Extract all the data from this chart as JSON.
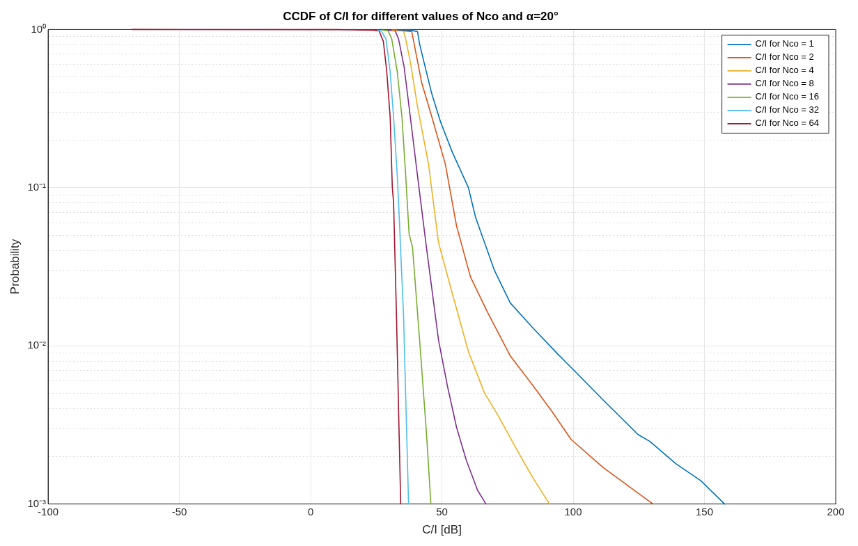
{
  "chart_data": {
    "type": "line",
    "title": "CCDF of C/I for different values of Nco and α=20°",
    "xlabel": "C/I [dB]",
    "ylabel": "Probability",
    "log": "y",
    "grid": true,
    "legend": "top right",
    "marker": "none",
    "line_style": "solid",
    "xlim": [
      -100,
      200
    ],
    "xticks": [
      -100,
      -50,
      0,
      50,
      100,
      150,
      200
    ],
    "ylim": [
      0.001,
      1
    ],
    "yticks": [
      {
        "value": 0.001,
        "label": "10⁻³"
      },
      {
        "value": 0.002,
        "label": null
      },
      {
        "value": 0.003,
        "label": null
      },
      {
        "value": 0.004,
        "label": null
      },
      {
        "value": 0.005,
        "label": null
      },
      {
        "value": 0.006,
        "label": null
      },
      {
        "value": 0.007,
        "label": null
      },
      {
        "value": 0.008,
        "label": null
      },
      {
        "value": 0.009,
        "label": null
      },
      {
        "value": 0.01,
        "label": "10⁻²"
      },
      {
        "value": 0.02,
        "label": null
      },
      {
        "value": 0.03,
        "label": null
      },
      {
        "value": 0.04,
        "label": null
      },
      {
        "value": 0.05,
        "label": null
      },
      {
        "value": 0.06,
        "label": null
      },
      {
        "value": 0.07,
        "label": null
      },
      {
        "value": 0.08,
        "label": null
      },
      {
        "value": 0.09,
        "label": null
      },
      {
        "value": 0.1,
        "label": "10⁻¹"
      },
      {
        "value": 0.2,
        "label": null
      },
      {
        "value": 0.3,
        "label": null
      },
      {
        "value": 0.4,
        "label": null
      },
      {
        "value": 0.5,
        "label": null
      },
      {
        "value": 0.6,
        "label": null
      },
      {
        "value": 0.7,
        "label": null
      },
      {
        "value": 0.8,
        "label": null
      },
      {
        "value": 0.9,
        "label": null
      },
      {
        "value": 1,
        "label": "10⁰"
      }
    ],
    "series": [
      {
        "name": "C/I for Nco = 1",
        "color": "#0072bd",
        "x": [
          33,
          38,
          40.7,
          41.5,
          43.4,
          46,
          49.5,
          54,
          60.1,
          62.8,
          70,
          76,
          84.8,
          93.9,
          99.2,
          111.4,
          124.7,
          129.3,
          139.1,
          148.7,
          157.7
        ],
        "values": [
          0.995,
          0.99,
          0.97,
          0.81,
          0.6,
          0.4,
          0.26,
          0.167,
          0.1,
          0.065,
          0.03,
          0.0187,
          0.0129,
          0.00895,
          0.0073,
          0.00455,
          0.00275,
          0.00248,
          0.0018,
          0.0014,
          0.001
        ]
      },
      {
        "name": "C/I for Nco = 2",
        "color": "#d95319",
        "x": [
          32,
          38.5,
          39.6,
          42.3,
          46,
          51.3,
          55.6,
          60.9,
          67.3,
          76.1,
          84.8,
          92,
          99.2,
          111.4,
          129.3,
          130.5
        ],
        "values": [
          0.995,
          0.97,
          0.785,
          0.46,
          0.286,
          0.141,
          0.057,
          0.0272,
          0.0164,
          0.0086,
          0.00557,
          0.00383,
          0.00256,
          0.0017,
          0.00103,
          0.001
        ]
      },
      {
        "name": "C/I for Nco = 4",
        "color": "#edb120",
        "x": [
          31,
          35.4,
          36.2,
          38,
          40.7,
          44.9,
          48.7,
          54,
          60.1,
          66.2,
          71.5,
          78.7,
          84.8,
          91
        ],
        "values": [
          0.99,
          0.98,
          0.87,
          0.62,
          0.326,
          0.141,
          0.045,
          0.0213,
          0.0092,
          0.00504,
          0.0036,
          0.00218,
          0.00145,
          0.001
        ]
      },
      {
        "name": "C/I for Nco = 8",
        "color": "#7e2f8e",
        "x": [
          29.5,
          32.2,
          33.5,
          35.6,
          38,
          40.7,
          44.1,
          48.7,
          52.1,
          55.6,
          59.3,
          63.6,
          66.8
        ],
        "values": [
          0.99,
          0.98,
          0.87,
          0.58,
          0.277,
          0.119,
          0.042,
          0.0109,
          0.00557,
          0.00304,
          0.00189,
          0.00122,
          0.001
        ]
      },
      {
        "name": "C/I for Nco = 16",
        "color": "#77ac30",
        "x": [
          27.5,
          29.5,
          30.9,
          33,
          34.8,
          36.2,
          37.5,
          38.8,
          41.5,
          44.1,
          45.8
        ],
        "values": [
          0.99,
          0.98,
          0.87,
          0.54,
          0.277,
          0.119,
          0.051,
          0.042,
          0.0109,
          0.00283,
          0.001
        ]
      },
      {
        "name": "C/I for Nco = 32",
        "color": "#4dbeee",
        "x": [
          25.5,
          26.9,
          28.7,
          30.3,
          31.6,
          33,
          33.5,
          35.4,
          37.3
        ],
        "values": [
          0.99,
          0.98,
          0.87,
          0.54,
          0.277,
          0.119,
          0.08,
          0.0153,
          0.001
        ]
      },
      {
        "name": "C/I for Nco = 64",
        "color": "#a2142f",
        "x": [
          -68,
          10,
          24,
          26.1,
          27.7,
          29,
          30.3,
          31.1,
          31.6,
          32.7,
          34.3
        ],
        "values": [
          1,
          0.998,
          0.99,
          0.98,
          0.84,
          0.54,
          0.277,
          0.101,
          0.08,
          0.0153,
          0.001
        ]
      }
    ]
  }
}
